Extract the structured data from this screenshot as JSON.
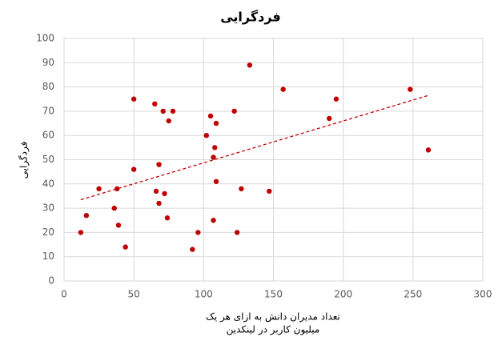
{
  "chart_data": {
    "type": "scatter",
    "title": "فردگرایی",
    "x_label": [
      "تعداد مدیران دانش به ازای هر یک",
      "میلیون کاربر در لینکدین"
    ],
    "y_label": "فردگرایی",
    "color": "#c00000",
    "grid": true,
    "xlim": [
      0,
      300
    ],
    "xticks": [
      0,
      50,
      100,
      150,
      200,
      250,
      300
    ],
    "ylim": [
      0,
      100
    ],
    "yticks": [
      0,
      10,
      20,
      30,
      40,
      50,
      60,
      70,
      80,
      90,
      100
    ],
    "x": [
      12,
      16,
      25,
      36,
      38,
      39,
      44,
      50,
      50,
      65,
      66,
      68,
      68,
      71,
      72,
      74,
      75,
      78,
      92,
      96,
      102,
      105,
      107,
      107,
      108,
      109,
      109,
      122,
      124,
      127,
      133,
      147,
      157,
      190,
      195,
      248,
      261
    ],
    "y": [
      20,
      27,
      38,
      30,
      38,
      23,
      14,
      46,
      75,
      73,
      37,
      48,
      32,
      70,
      36,
      26,
      66,
      70,
      13,
      20,
      60,
      68,
      25,
      51,
      55,
      41,
      65,
      70,
      20,
      38,
      89,
      37,
      79,
      67,
      75,
      79,
      54
    ],
    "trendline": {
      "x": [
        12,
        261
      ],
      "y": [
        33.5,
        76.5
      ]
    }
  }
}
